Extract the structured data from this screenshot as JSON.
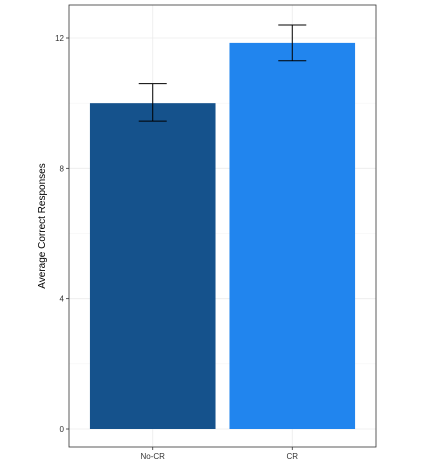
{
  "chart_data": {
    "type": "bar",
    "title": "",
    "xlabel": "",
    "ylabel": "Average Correct Responses",
    "categories": [
      "No-CR",
      "CR"
    ],
    "values": [
      10.0,
      11.85
    ],
    "error_bars": [
      {
        "low": 9.45,
        "high": 10.6
      },
      {
        "low": 11.3,
        "high": 12.4
      }
    ],
    "colors": [
      "#15528c",
      "#2185ee"
    ],
    "ylim": [
      0,
      12.8
    ],
    "y_ticks": [
      0,
      4,
      8,
      12
    ],
    "y_tick_labels": [
      "0",
      "4",
      "8",
      "12"
    ],
    "grid": true,
    "legend": "none"
  }
}
